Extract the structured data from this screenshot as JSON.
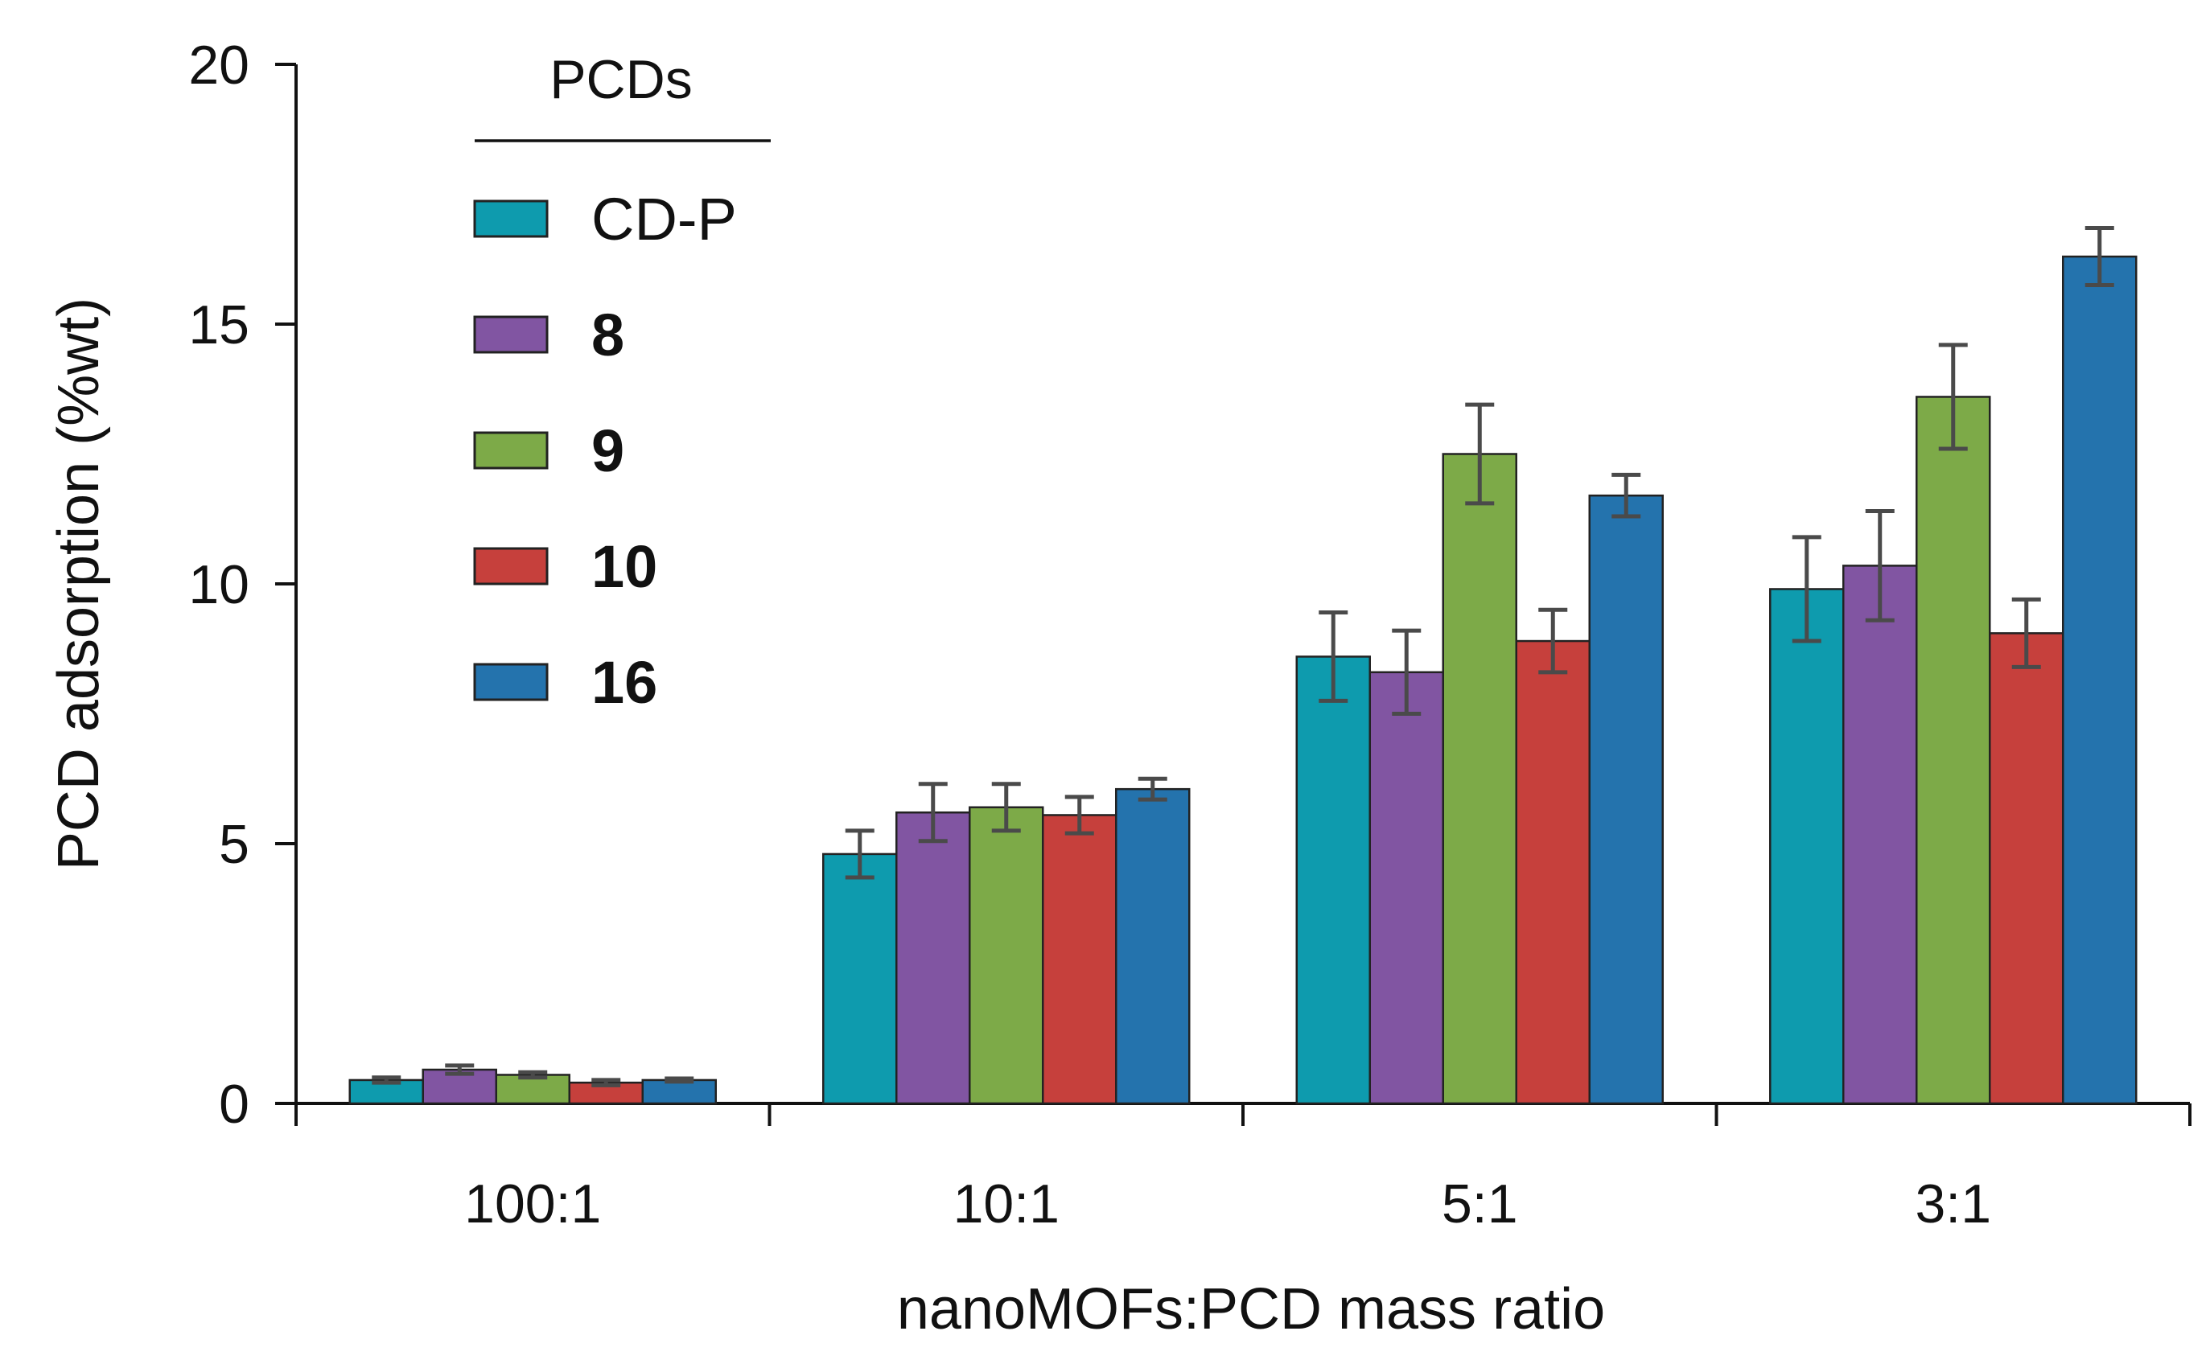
{
  "chart_data": {
    "type": "bar",
    "title": "",
    "xlabel": "nanoMOFs:PCD mass ratio",
    "ylabel": "PCD adsorption (%wt)",
    "ylim": [
      0,
      20
    ],
    "yticks": [
      0,
      5,
      10,
      15,
      20
    ],
    "categories": [
      "100:1",
      "10:1",
      "5:1",
      "3:1"
    ],
    "legend": {
      "title": "PCDs",
      "placement": "top-left"
    },
    "series": [
      {
        "name": "CD-P",
        "bold": false,
        "color": "#0E9BAE",
        "values": [
          0.45,
          4.8,
          8.6,
          9.9
        ],
        "errors": [
          0.05,
          0.45,
          0.85,
          1.0
        ]
      },
      {
        "name": "8",
        "bold": true,
        "color": "#8155A2",
        "values": [
          0.65,
          5.6,
          8.3,
          10.35
        ],
        "errors": [
          0.08,
          0.55,
          0.8,
          1.05
        ]
      },
      {
        "name": "9",
        "bold": true,
        "color": "#7DAA48",
        "values": [
          0.55,
          5.7,
          12.5,
          13.6
        ],
        "errors": [
          0.05,
          0.45,
          0.95,
          1.0
        ]
      },
      {
        "name": "10",
        "bold": true,
        "color": "#C6403C",
        "values": [
          0.4,
          5.55,
          8.9,
          9.05
        ],
        "errors": [
          0.05,
          0.35,
          0.6,
          0.65
        ]
      },
      {
        "name": "16",
        "bold": true,
        "color": "#2473AD",
        "values": [
          0.45,
          6.05,
          11.7,
          16.3
        ],
        "errors": [
          0.03,
          0.2,
          0.4,
          0.55
        ]
      }
    ]
  }
}
